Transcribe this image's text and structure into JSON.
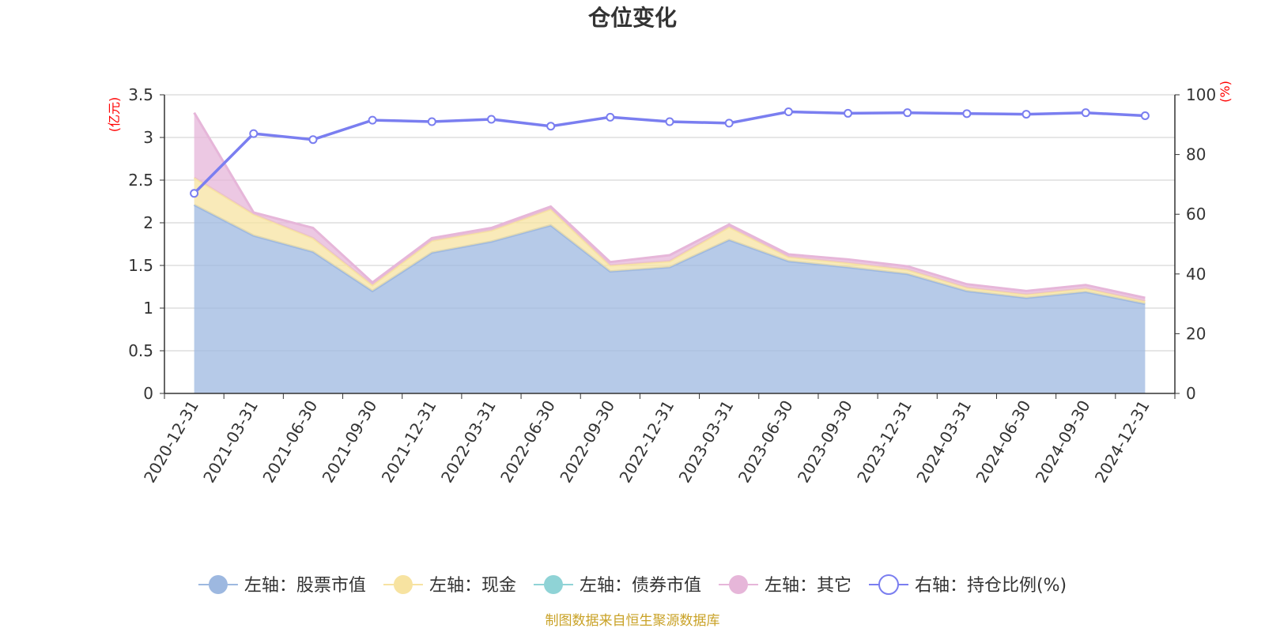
{
  "chart_data": {
    "type": "area",
    "title": "仓位变化",
    "left_unit": "(亿元)",
    "right_unit": "(%)",
    "left_ylim": [
      0,
      3.5
    ],
    "left_ticks": [
      "0",
      "0.5",
      "1",
      "1.5",
      "2",
      "2.5",
      "3",
      "3.5"
    ],
    "right_ylim": [
      0,
      100
    ],
    "right_ticks": [
      "0",
      "20",
      "40",
      "60",
      "80",
      "100"
    ],
    "grid": true,
    "legend_position": "bottom",
    "categories": [
      "2020-12-31",
      "2021-03-31",
      "2021-06-30",
      "2021-09-30",
      "2021-12-31",
      "2022-03-31",
      "2022-06-30",
      "2022-09-30",
      "2022-12-31",
      "2023-03-31",
      "2023-06-30",
      "2023-09-30",
      "2023-12-31",
      "2024-03-31",
      "2024-06-30",
      "2024-09-30",
      "2024-12-31"
    ],
    "series": [
      {
        "name": "左轴：股票市值",
        "axis": "left",
        "stack": true,
        "color": "#9db8e0",
        "values": [
          2.21,
          1.85,
          1.66,
          1.2,
          1.65,
          1.78,
          1.97,
          1.43,
          1.48,
          1.8,
          1.55,
          1.48,
          1.4,
          1.2,
          1.12,
          1.19,
          1.05
        ]
      },
      {
        "name": "左轴：现金",
        "axis": "left",
        "stack": true,
        "color": "#f7e3a1",
        "values": [
          0.32,
          0.25,
          0.16,
          0.07,
          0.14,
          0.13,
          0.19,
          0.07,
          0.07,
          0.15,
          0.05,
          0.05,
          0.05,
          0.04,
          0.04,
          0.04,
          0.03
        ]
      },
      {
        "name": "左轴：债券市值",
        "axis": "left",
        "stack": true,
        "color": "#8fd3d6",
        "values": [
          0,
          0,
          0,
          0,
          0,
          0,
          0,
          0,
          0,
          0,
          0,
          0,
          0,
          0,
          0,
          0,
          0
        ]
      },
      {
        "name": "左轴：其它",
        "axis": "left",
        "stack": true,
        "color": "#e6b6d9",
        "values": [
          0.76,
          0.02,
          0.12,
          0.03,
          0.03,
          0.03,
          0.03,
          0.04,
          0.07,
          0.03,
          0.03,
          0.04,
          0.04,
          0.04,
          0.04,
          0.04,
          0.04
        ]
      },
      {
        "name": "右轴：持仓比例(%)",
        "axis": "right",
        "stack": false,
        "color": "#7a7ef0",
        "values": [
          67.0,
          87.0,
          85.0,
          91.5,
          91.0,
          91.8,
          89.5,
          92.5,
          91.0,
          90.5,
          94.3,
          93.8,
          94.0,
          93.7,
          93.5,
          94.0,
          93.0
        ]
      }
    ]
  },
  "footer": "制图数据来自恒生聚源数据库"
}
